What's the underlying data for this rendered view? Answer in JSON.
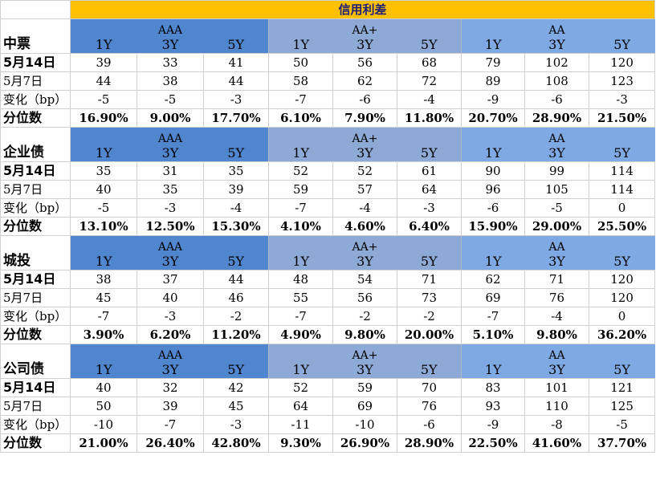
{
  "title": "信用利差",
  "ratings": [
    "AAA",
    "AA+",
    "AA"
  ],
  "tenors": [
    "1Y",
    "3Y",
    "5Y",
    "1Y",
    "3Y",
    "5Y",
    "1Y",
    "3Y",
    "5Y"
  ],
  "colors": {
    "title_bg": "#FFC000",
    "AAA_bg": "#4F86CE",
    "AA+_bg": "#8DA9D6",
    "AA_bg": "#7FA9E3"
  },
  "sections": [
    {
      "name": "中票",
      "rows": [
        {
          "label": "5月14日",
          "values": [
            "39",
            "33",
            "41",
            "50",
            "56",
            "68",
            "79",
            "102",
            "120"
          ]
        },
        {
          "label": "5月7日",
          "values": [
            "44",
            "38",
            "44",
            "58",
            "62",
            "72",
            "89",
            "108",
            "123"
          ]
        },
        {
          "label": "变化（bp）",
          "values": [
            "-5",
            "-5",
            "-3",
            "-7",
            "-6",
            "-4",
            "-9",
            "-6",
            "-3"
          ]
        },
        {
          "label": "分位数",
          "values": [
            "16.90%",
            "9.00%",
            "17.70%",
            "6.10%",
            "7.90%",
            "11.80%",
            "20.70%",
            "28.90%",
            "21.50%"
          ]
        }
      ]
    },
    {
      "name": "企业债",
      "rows": [
        {
          "label": "5月14日",
          "values": [
            "35",
            "31",
            "35",
            "52",
            "52",
            "61",
            "90",
            "99",
            "114"
          ]
        },
        {
          "label": "5月7日",
          "values": [
            "40",
            "35",
            "39",
            "59",
            "57",
            "64",
            "96",
            "105",
            "114"
          ]
        },
        {
          "label": "变化（bp）",
          "values": [
            "-5",
            "-3",
            "-4",
            "-7",
            "-4",
            "-3",
            "-6",
            "-5",
            "0"
          ]
        },
        {
          "label": "分位数",
          "values": [
            "13.10%",
            "12.50%",
            "15.30%",
            "4.10%",
            "4.60%",
            "6.40%",
            "15.90%",
            "29.00%",
            "25.50%"
          ]
        }
      ]
    },
    {
      "name": "城投",
      "rows": [
        {
          "label": "5月14日",
          "values": [
            "38",
            "37",
            "44",
            "48",
            "54",
            "71",
            "62",
            "71",
            "120"
          ]
        },
        {
          "label": "5月7日",
          "values": [
            "45",
            "40",
            "46",
            "55",
            "56",
            "73",
            "69",
            "76",
            "120"
          ]
        },
        {
          "label": "变化（bp）",
          "values": [
            "-7",
            "-3",
            "-2",
            "-7",
            "-2",
            "-2",
            "-7",
            "-4",
            "0"
          ]
        },
        {
          "label": "分位数",
          "values": [
            "3.90%",
            "6.20%",
            "11.20%",
            "4.90%",
            "9.80%",
            "20.00%",
            "5.10%",
            "9.80%",
            "36.20%"
          ]
        }
      ]
    },
    {
      "name": "公司债",
      "rows": [
        {
          "label": "5月14日",
          "values": [
            "40",
            "32",
            "42",
            "52",
            "59",
            "70",
            "83",
            "101",
            "121"
          ]
        },
        {
          "label": "5月7日",
          "values": [
            "50",
            "39",
            "45",
            "64",
            "69",
            "76",
            "93",
            "110",
            "125"
          ]
        },
        {
          "label": "变化（bp）",
          "values": [
            "-10",
            "-7",
            "-3",
            "-11",
            "-10",
            "-6",
            "-9",
            "-8",
            "-5"
          ]
        },
        {
          "label": "分位数",
          "values": [
            "21.00%",
            "26.40%",
            "42.80%",
            "9.30%",
            "26.90%",
            "28.90%",
            "22.50%",
            "41.60%",
            "37.70%"
          ]
        }
      ]
    }
  ]
}
